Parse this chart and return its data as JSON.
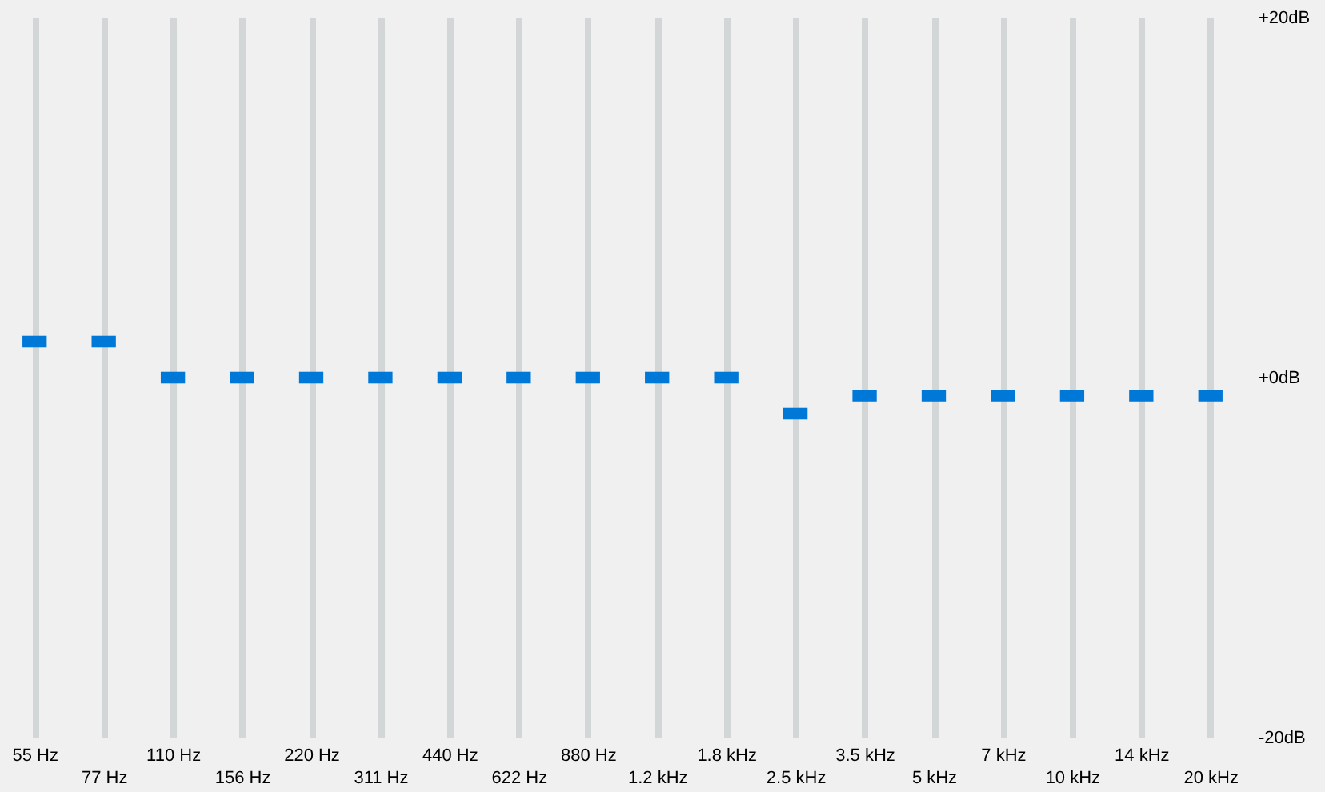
{
  "chart_data": {
    "type": "scatter",
    "categories": [
      "55 Hz",
      "77 Hz",
      "110 Hz",
      "156 Hz",
      "220 Hz",
      "311 Hz",
      "440 Hz",
      "622 Hz",
      "880 Hz",
      "1.2 kHz",
      "1.8 kHz",
      "2.5 kHz",
      "3.5 kHz",
      "5 kHz",
      "7 kHz",
      "10 kHz",
      "14 kHz",
      "20 kHz"
    ],
    "series": [
      {
        "color": "#0078d7",
        "values": [
          2,
          2,
          0,
          0,
          0,
          0,
          0,
          0,
          0,
          0,
          0,
          -2,
          -1,
          -1,
          -1,
          -1,
          -1,
          -1
        ]
      }
    ],
    "ylim": [
      -20,
      20
    ],
    "yticks": [
      {
        "value": 20,
        "label": "+20dB"
      },
      {
        "value": 0,
        "label": "+0dB"
      },
      {
        "value": -20,
        "label": "-20dB"
      }
    ],
    "grid": "x",
    "marker": "square"
  }
}
